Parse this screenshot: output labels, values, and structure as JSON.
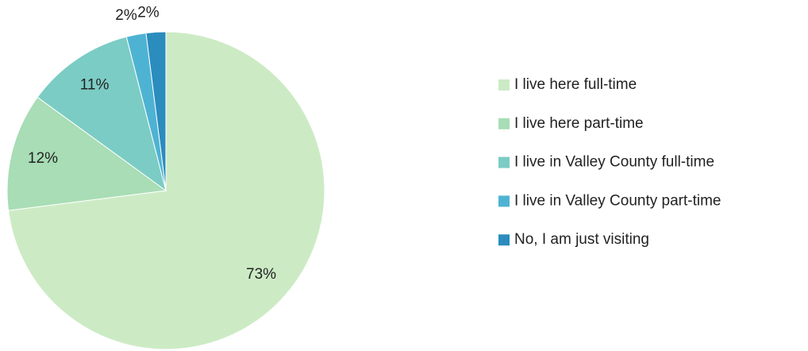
{
  "chart_data": {
    "type": "pie",
    "categories": [
      "I live here full-time",
      "I live here part-time",
      "I live in Valley County full-time",
      "I live in Valley County part-time",
      "No, I am just visiting"
    ],
    "values": [
      73,
      12,
      11,
      2,
      2
    ],
    "value_labels": [
      "73%",
      "12%",
      "11%",
      "2%",
      "2%"
    ],
    "colors": [
      "#ccebc5",
      "#a8ddb5",
      "#7bccc4",
      "#4eb3d3",
      "#2b8cbe"
    ],
    "legend": "right"
  }
}
